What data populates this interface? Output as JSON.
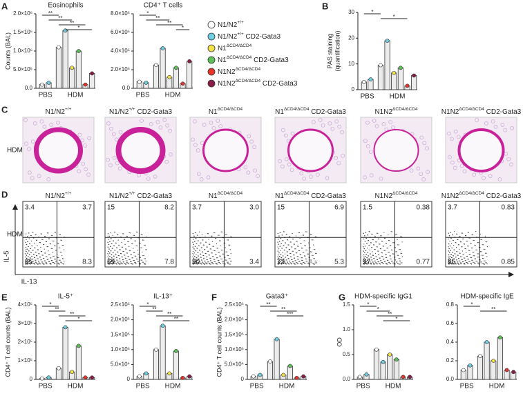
{
  "panels": [
    "A",
    "B",
    "C",
    "D",
    "E",
    "F",
    "G"
  ],
  "legend": [
    {
      "base": "N1/N2",
      "sup": "+/+",
      "color": "#ffffff"
    },
    {
      "base": "N1/N2",
      "sup": "+/+",
      "suffix": " CD2-Gata3",
      "color": "#6fcfe3"
    },
    {
      "base": "N1",
      "sup": "ΔCD4/ΔCD4",
      "color": "#f3e24a"
    },
    {
      "base": "N1",
      "sup": "ΔCD4/ΔCD4",
      "suffix": " CD2-Gata3",
      "color": "#5cbf57"
    },
    {
      "base": "N1N2",
      "sup": "ΔCD4/ΔCD4",
      "color": "#e5352c"
    },
    {
      "base": "N1N2",
      "sup": "ΔCD4/ΔCD4",
      "suffix": " CD2-Gata3",
      "color": "#8a1c4a"
    }
  ],
  "chart_data": [
    {
      "type": "bar",
      "title": "Eosinophils",
      "ylabel": [
        "Counts (BAL)"
      ],
      "group_labels": [
        "PBS",
        "HDM"
      ],
      "values": [
        100000,
        150000,
        1100000,
        1550000,
        550000,
        1000000,
        100000,
        400000
      ],
      "ylim": [
        0,
        2000000
      ],
      "yticks": [
        {
          "value": 0,
          "label": "0.0"
        },
        {
          "value": 500000,
          "label": "5.0×10⁵"
        },
        {
          "value": 1000000,
          "label": "1.0×10⁶"
        },
        {
          "value": 1500000,
          "label": "1.5×10⁶"
        },
        {
          "value": 2000000,
          "label": "2.0×10⁶"
        }
      ],
      "stars": [
        {
          "label": "**",
          "from": 0,
          "to": 2
        },
        {
          "label": "**",
          "from": 1,
          "to": 4
        },
        {
          "label": "**",
          "from": 2,
          "to": 6
        },
        {
          "label": "*",
          "from": 3,
          "to": 7
        }
      ]
    },
    {
      "type": "bar",
      "title": "CD4⁺ T cells",
      "group_labels": [
        "PBS",
        "HDM"
      ],
      "values": [
        70000,
        60000,
        250000,
        430000,
        120000,
        220000,
        50000,
        290000
      ],
      "ylim": [
        0,
        800000
      ],
      "yticks": [
        {
          "value": 0,
          "label": "0.0"
        },
        {
          "value": 200000,
          "label": "2.0×10⁵"
        },
        {
          "value": 400000,
          "label": "4.0×10⁵"
        },
        {
          "value": 600000,
          "label": "6.0×10⁵"
        },
        {
          "value": 800000,
          "label": "8.0×10⁵"
        }
      ],
      "stars": [
        {
          "label": "*",
          "from": 0,
          "to": 2
        },
        {
          "label": "**",
          "from": 1,
          "to": 4
        },
        {
          "label": "**",
          "from": 2,
          "to": 6
        },
        {
          "label": "*",
          "from": 5,
          "to": 7
        }
      ]
    },
    {
      "type": "bar",
      "ylabel": [
        "PAS staining",
        "(quantification)"
      ],
      "group_labels": [
        "PBS",
        "HDM"
      ],
      "values": [
        3,
        4,
        9.5,
        19,
        6.5,
        8.5,
        1.5,
        5.5
      ],
      "ylim": [
        0,
        30
      ],
      "yticks": [
        0,
        10,
        20,
        30
      ],
      "stars": [
        {
          "label": "*",
          "from": 0,
          "to": 2
        },
        {
          "label": "*",
          "from": 2,
          "to": 6
        }
      ]
    },
    {
      "type": "bar",
      "title": "IL-5⁺",
      "ylabel": [
        "CD4⁺ T cell counts (BAL)"
      ],
      "group_labels": [
        "PBS",
        "HDM"
      ],
      "values": [
        5000,
        10000,
        60000,
        280000,
        40000,
        180000,
        10000,
        10000
      ],
      "ylim": [
        0,
        400000
      ],
      "yticks": [
        0,
        {
          "value": 100000,
          "label": "1×10⁵"
        },
        {
          "value": 200000,
          "label": "2×10⁵"
        },
        {
          "value": 300000,
          "label": "3×10⁵"
        },
        {
          "value": 400000,
          "label": "4×10⁵"
        }
      ],
      "stars": [
        {
          "label": "*",
          "from": 0,
          "to": 2
        },
        {
          "label": "**",
          "from": 1,
          "to": 3
        },
        {
          "label": "**",
          "from": 2,
          "to": 6
        },
        {
          "label": "*",
          "from": 3,
          "to": 7
        }
      ]
    },
    {
      "type": "bar",
      "title": "IL-13⁺",
      "group_labels": [
        "PBS",
        "HDM"
      ],
      "values": [
        10000,
        20000,
        100000,
        180000,
        20000,
        95000,
        5000,
        10000
      ],
      "ylim": [
        0,
        250000
      ],
      "yticks": [
        0,
        {
          "value": 50000,
          "label": "5.0×10⁴"
        },
        {
          "value": 100000,
          "label": "1.0×10⁵"
        },
        {
          "value": 150000,
          "label": "1.5×10⁵"
        },
        {
          "value": 200000,
          "label": "2.0×10⁵"
        },
        {
          "value": 250000,
          "label": "2.5×10⁵"
        }
      ],
      "stars": [
        {
          "label": "*",
          "from": 0,
          "to": 2
        },
        {
          "label": "**",
          "from": 1,
          "to": 3
        },
        {
          "label": "**",
          "from": 2,
          "to": 6
        },
        {
          "label": "**",
          "from": 3,
          "to": 7
        }
      ]
    },
    {
      "type": "bar",
      "title": "Gata3⁺",
      "ylabel": [
        "CD4⁺ T cell counts (BAL)"
      ],
      "group_labels": [
        "PBS",
        "HDM"
      ],
      "values": [
        10000,
        15000,
        60000,
        135000,
        15000,
        45000,
        5000,
        10000
      ],
      "ylim": [
        0,
        250000
      ],
      "yticks": [
        0,
        {
          "value": 50000,
          "label": "5.0×10⁴"
        },
        {
          "value": 100000,
          "label": "1.0×10⁵"
        },
        {
          "value": 150000,
          "label": "1.5×10⁵"
        },
        {
          "value": 200000,
          "label": "2.0×10⁵"
        },
        {
          "value": 250000,
          "label": "2.5×10⁵"
        }
      ],
      "stars": [
        {
          "label": "**",
          "from": 1,
          "to": 3
        },
        {
          "label": "**",
          "from": 2,
          "to": 6
        },
        {
          "label": "***",
          "from": 3,
          "to": 7
        }
      ]
    },
    {
      "type": "bar",
      "title": "HDM-specific IgG1",
      "ylabel": [
        "OD"
      ],
      "group_labels": [
        "PBS",
        "HDM"
      ],
      "values": [
        0.05,
        0.1,
        0.6,
        0.35,
        0.5,
        0.4,
        0.05,
        0.05
      ],
      "ylim": [
        0,
        1.5
      ],
      "yticks": [
        {
          "value": 0,
          "label": "0.0"
        },
        0.5,
        {
          "value": 1,
          "label": "1.0"
        },
        1.5
      ],
      "stars": [
        {
          "label": "*",
          "from": 0,
          "to": 2
        },
        {
          "label": "*",
          "from": 1,
          "to": 4
        },
        {
          "label": "**",
          "from": 2,
          "to": 6
        },
        {
          "label": "*",
          "from": 3,
          "to": 7
        }
      ]
    },
    {
      "type": "bar",
      "title": "HDM-specific IgE",
      "group_labels": [
        "PBS",
        "HDM"
      ],
      "values": [
        0.1,
        0.15,
        0.25,
        0.4,
        0.2,
        0.45,
        0.1,
        0.08
      ],
      "ylim": [
        0,
        0.8
      ],
      "yticks": [
        {
          "value": 0,
          "label": "0.0"
        },
        0.2,
        0.4,
        0.6,
        0.8
      ],
      "stars": [
        {
          "label": "*",
          "from": 0,
          "to": 2
        },
        {
          "label": "**",
          "from": 2,
          "to": 6
        }
      ]
    }
  ],
  "histology": {
    "row_label": "HDM",
    "titles": [
      {
        "base": "N1/N2",
        "sup": "+/+"
      },
      {
        "base": "N1/N2",
        "sup": "+/+",
        "suffix": " CD2-Gata3"
      },
      {
        "base": "N1",
        "sup": "ΔCD4/ΔCD4"
      },
      {
        "base": "N1",
        "sup": "ΔCD4/ΔCD4",
        "suffix": " CD2-Gata3"
      },
      {
        "base": "N1N2",
        "sup": "ΔCD4/ΔCD4"
      },
      {
        "base": "N1N2",
        "sup": "ΔCD4/ΔCD4",
        "suffix": " CD2-Gata3"
      }
    ]
  },
  "flow": {
    "row_label": "HDM",
    "axis_y": "IL-5",
    "axis_x": "IL-13",
    "plots": [
      {
        "title": {
          "base": "N1/N2",
          "sup": "+/+"
        },
        "quadrants": [
          "3.4",
          "3.7",
          "85",
          "8.3"
        ]
      },
      {
        "title": {
          "base": "N1/N2",
          "sup": "+/+",
          "suffix": " CD2-Gata3"
        },
        "quadrants": [
          "15",
          "8.2",
          "69",
          "7.8"
        ]
      },
      {
        "title": {
          "base": "N1",
          "sup": "ΔCD4/ΔCD4"
        },
        "quadrants": [
          "3.7",
          "3.0",
          "90",
          "3.4"
        ]
      },
      {
        "title": {
          "base": "N1",
          "sup": "ΔCD4/ΔCD4",
          "suffix": " CD2-Gata3"
        },
        "quadrants": [
          "15",
          "6.9",
          "73",
          "5.3"
        ]
      },
      {
        "title": {
          "base": "N1N2",
          "sup": "ΔCD4/ΔCD4"
        },
        "quadrants": [
          "1.5",
          "0.38",
          "97",
          "0.77"
        ]
      },
      {
        "title": {
          "base": "N1N2",
          "sup": "ΔCD4/ΔCD4",
          "suffix": " CD2-Gata3"
        },
        "quadrants": [
          "3.7",
          "0.83",
          "85",
          "0.85"
        ]
      }
    ]
  }
}
